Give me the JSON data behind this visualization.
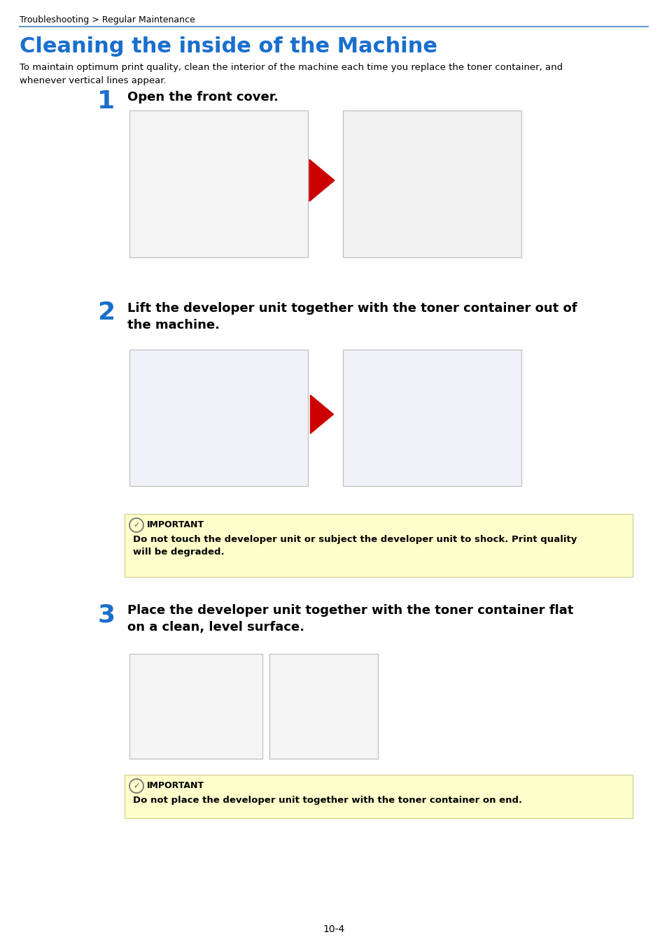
{
  "page_background": "#ffffff",
  "breadcrumb": "Troubleshooting > Regular Maintenance",
  "breadcrumb_color": "#000000",
  "breadcrumb_fontsize": 9,
  "separator_color": "#6699cc",
  "title": "Cleaning the inside of the Machine",
  "title_color": "#1a6fcc",
  "title_fontsize": 22,
  "intro_text": "To maintain optimum print quality, clean the interior of the machine each time you replace the toner container, and\nwhenever vertical lines appear.",
  "intro_fontsize": 9.5,
  "step1_num": "1",
  "step1_text": "Open the front cover.",
  "step1_fontsize": 13,
  "step2_num": "2",
  "step2_text": "Lift the developer unit together with the toner container out of\nthe machine.",
  "step2_fontsize": 13,
  "step3_num": "3",
  "step3_text": "Place the developer unit together with the toner container flat\non a clean, level surface.",
  "step3_fontsize": 13,
  "important_bg": "#ffffcc",
  "important_border": "#cccc88",
  "important_label": "IMPORTANT",
  "important1_text": "Do not touch the developer unit or subject the developer unit to shock. Print quality\nwill be degraded.",
  "important2_text": "Do not place the developer unit together with the toner container on end.",
  "important_fontsize": 9.5,
  "page_num": "10-4",
  "step_num_color": "#1a6fcc",
  "step_num_fontsize": 26,
  "arrow_color": "#cc0000"
}
